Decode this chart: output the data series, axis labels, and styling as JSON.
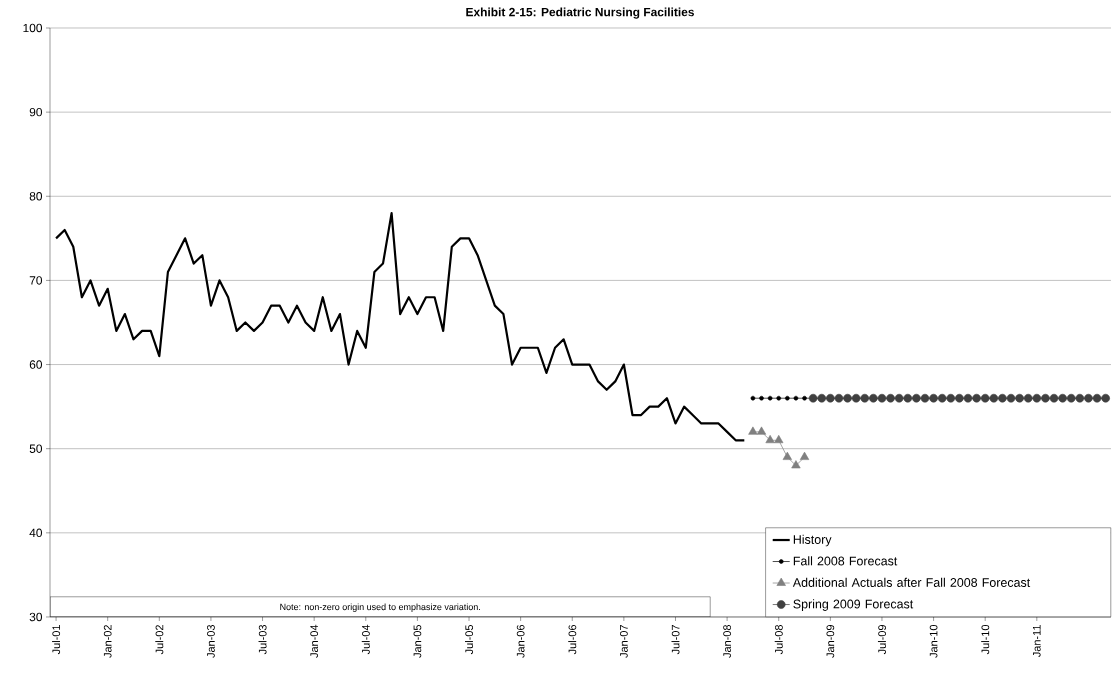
{
  "chart_data": {
    "type": "line",
    "title": "Exhibit 2-15: Pediatric Nursing Facilities",
    "annotations": [
      "Note: non-zero origin used to emphasize variation."
    ],
    "ylim": [
      30,
      100
    ],
    "yticks": [
      30,
      40,
      50,
      60,
      70,
      80,
      90,
      100
    ],
    "xlim": [
      "2001-06-10",
      "2011-09-20"
    ],
    "xticks": [
      {
        "value": "2001-07",
        "label": "Jul-01"
      },
      {
        "value": "2002-01",
        "label": "Jan-02"
      },
      {
        "value": "2002-07",
        "label": "Jul-02"
      },
      {
        "value": "2003-01",
        "label": "Jan-03"
      },
      {
        "value": "2003-07",
        "label": "Jul-03"
      },
      {
        "value": "2004-01",
        "label": "Jan-04"
      },
      {
        "value": "2004-07",
        "label": "Jul-04"
      },
      {
        "value": "2005-01",
        "label": "Jan-05"
      },
      {
        "value": "2005-07",
        "label": "Jul-05"
      },
      {
        "value": "2006-01",
        "label": "Jan-06"
      },
      {
        "value": "2006-07",
        "label": "Jul-06"
      },
      {
        "value": "2007-01",
        "label": "Jan-07"
      },
      {
        "value": "2007-07",
        "label": "Jul-07"
      },
      {
        "value": "2008-01",
        "label": "Jan-08"
      },
      {
        "value": "2008-07",
        "label": "Jul-08"
      },
      {
        "value": "2009-01",
        "label": "Jan-09"
      },
      {
        "value": "2009-07",
        "label": "Jul-09"
      },
      {
        "value": "2010-01",
        "label": "Jan-10"
      },
      {
        "value": "2010-07",
        "label": "Jul-10"
      },
      {
        "value": "2011-01",
        "label": "Jan-11"
      }
    ],
    "grid": "y",
    "legend": "bottom right",
    "line_style": "solid",
    "series": [
      {
        "name": "History",
        "color": "#000000",
        "marker": "none",
        "x": [
          "2001-07",
          "2001-08",
          "2001-09",
          "2001-10",
          "2001-11",
          "2001-12",
          "2002-01",
          "2002-02",
          "2002-03",
          "2002-04",
          "2002-05",
          "2002-06",
          "2002-07",
          "2002-08",
          "2002-09",
          "2002-10",
          "2002-11",
          "2002-12",
          "2003-01",
          "2003-02",
          "2003-03",
          "2003-04",
          "2003-05",
          "2003-06",
          "2003-07",
          "2003-08",
          "2003-09",
          "2003-10",
          "2003-11",
          "2003-12",
          "2004-01",
          "2004-02",
          "2004-03",
          "2004-04",
          "2004-05",
          "2004-06",
          "2004-07",
          "2004-08",
          "2004-09",
          "2004-10",
          "2004-11",
          "2004-12",
          "2005-01",
          "2005-02",
          "2005-03",
          "2005-04",
          "2005-05",
          "2005-06",
          "2005-07",
          "2005-08",
          "2005-09",
          "2005-10",
          "2005-11",
          "2005-12",
          "2006-01",
          "2006-02",
          "2006-03",
          "2006-04",
          "2006-05",
          "2006-06",
          "2006-07",
          "2006-08",
          "2006-09",
          "2006-10",
          "2006-11",
          "2006-12",
          "2007-01",
          "2007-02",
          "2007-03",
          "2007-04",
          "2007-05",
          "2007-06",
          "2007-07",
          "2007-08",
          "2007-09",
          "2007-10",
          "2007-11",
          "2007-12",
          "2008-01",
          "2008-02",
          "2008-03"
        ],
        "values": [
          75,
          76,
          74,
          68,
          70,
          67,
          69,
          64,
          66,
          63,
          64,
          64,
          61,
          71,
          73,
          75,
          72,
          73,
          67,
          70,
          68,
          64,
          65,
          64,
          65,
          67,
          67,
          65,
          67,
          65,
          64,
          68,
          64,
          66,
          60,
          64,
          62,
          71,
          72,
          78,
          66,
          68,
          66,
          68,
          68,
          64,
          74,
          75,
          75,
          73,
          70,
          67,
          66,
          60,
          62,
          62,
          62,
          59,
          62,
          63,
          60,
          60,
          60,
          58,
          57,
          58,
          60,
          54,
          54,
          55,
          55,
          56,
          53,
          55,
          54,
          53,
          53,
          53,
          52,
          51,
          51
        ]
      },
      {
        "name": "Fall 2008 Forecast",
        "color": "#000000",
        "marker": "circle",
        "x": [
          "2008-04",
          "2008-05",
          "2008-06",
          "2008-07",
          "2008-08",
          "2008-09",
          "2008-10",
          "2008-11",
          "2008-12",
          "2009-01",
          "2009-02",
          "2009-03",
          "2009-04",
          "2009-05",
          "2009-06",
          "2009-07",
          "2009-08",
          "2009-09",
          "2009-10",
          "2009-11",
          "2009-12",
          "2010-01",
          "2010-02",
          "2010-03",
          "2010-04",
          "2010-05",
          "2010-06",
          "2010-07",
          "2010-08",
          "2010-09",
          "2010-10",
          "2010-11",
          "2010-12",
          "2011-01",
          "2011-02",
          "2011-03",
          "2011-04",
          "2011-05",
          "2011-06",
          "2011-07",
          "2011-08",
          "2011-09"
        ],
        "values": [
          56,
          56,
          56,
          56,
          56,
          56,
          56,
          56,
          56,
          56,
          56,
          56,
          56,
          56,
          56,
          56,
          56,
          56,
          56,
          56,
          56,
          56,
          56,
          56,
          56,
          56,
          56,
          56,
          56,
          56,
          56,
          56,
          56,
          56,
          56,
          56,
          56,
          56,
          56,
          56,
          56,
          56
        ]
      },
      {
        "name": "Additional Actuals after Fall 2008 Forecast",
        "color": "#808080",
        "marker": "triangle",
        "x": [
          "2008-04",
          "2008-05",
          "2008-06",
          "2008-07",
          "2008-08",
          "2008-09",
          "2008-10"
        ],
        "values": [
          52,
          52,
          51,
          51,
          49,
          48,
          49
        ]
      },
      {
        "name": "Spring 2009 Forecast",
        "color": "#404040",
        "marker": "circle",
        "x": [
          "2008-11",
          "2008-12",
          "2009-01",
          "2009-02",
          "2009-03",
          "2009-04",
          "2009-05",
          "2009-06",
          "2009-07",
          "2009-08",
          "2009-09",
          "2009-10",
          "2009-11",
          "2009-12",
          "2010-01",
          "2010-02",
          "2010-03",
          "2010-04",
          "2010-05",
          "2010-06",
          "2010-07",
          "2010-08",
          "2010-09",
          "2010-10",
          "2010-11",
          "2010-12",
          "2011-01",
          "2011-02",
          "2011-03",
          "2011-04",
          "2011-05",
          "2011-06",
          "2011-07",
          "2011-08",
          "2011-09"
        ],
        "values": [
          56,
          56,
          56,
          56,
          56,
          56,
          56,
          56,
          56,
          56,
          56,
          56,
          56,
          56,
          56,
          56,
          56,
          56,
          56,
          56,
          56,
          56,
          56,
          56,
          56,
          56,
          56,
          56,
          56,
          56,
          56,
          56,
          56,
          56,
          56
        ]
      }
    ]
  }
}
